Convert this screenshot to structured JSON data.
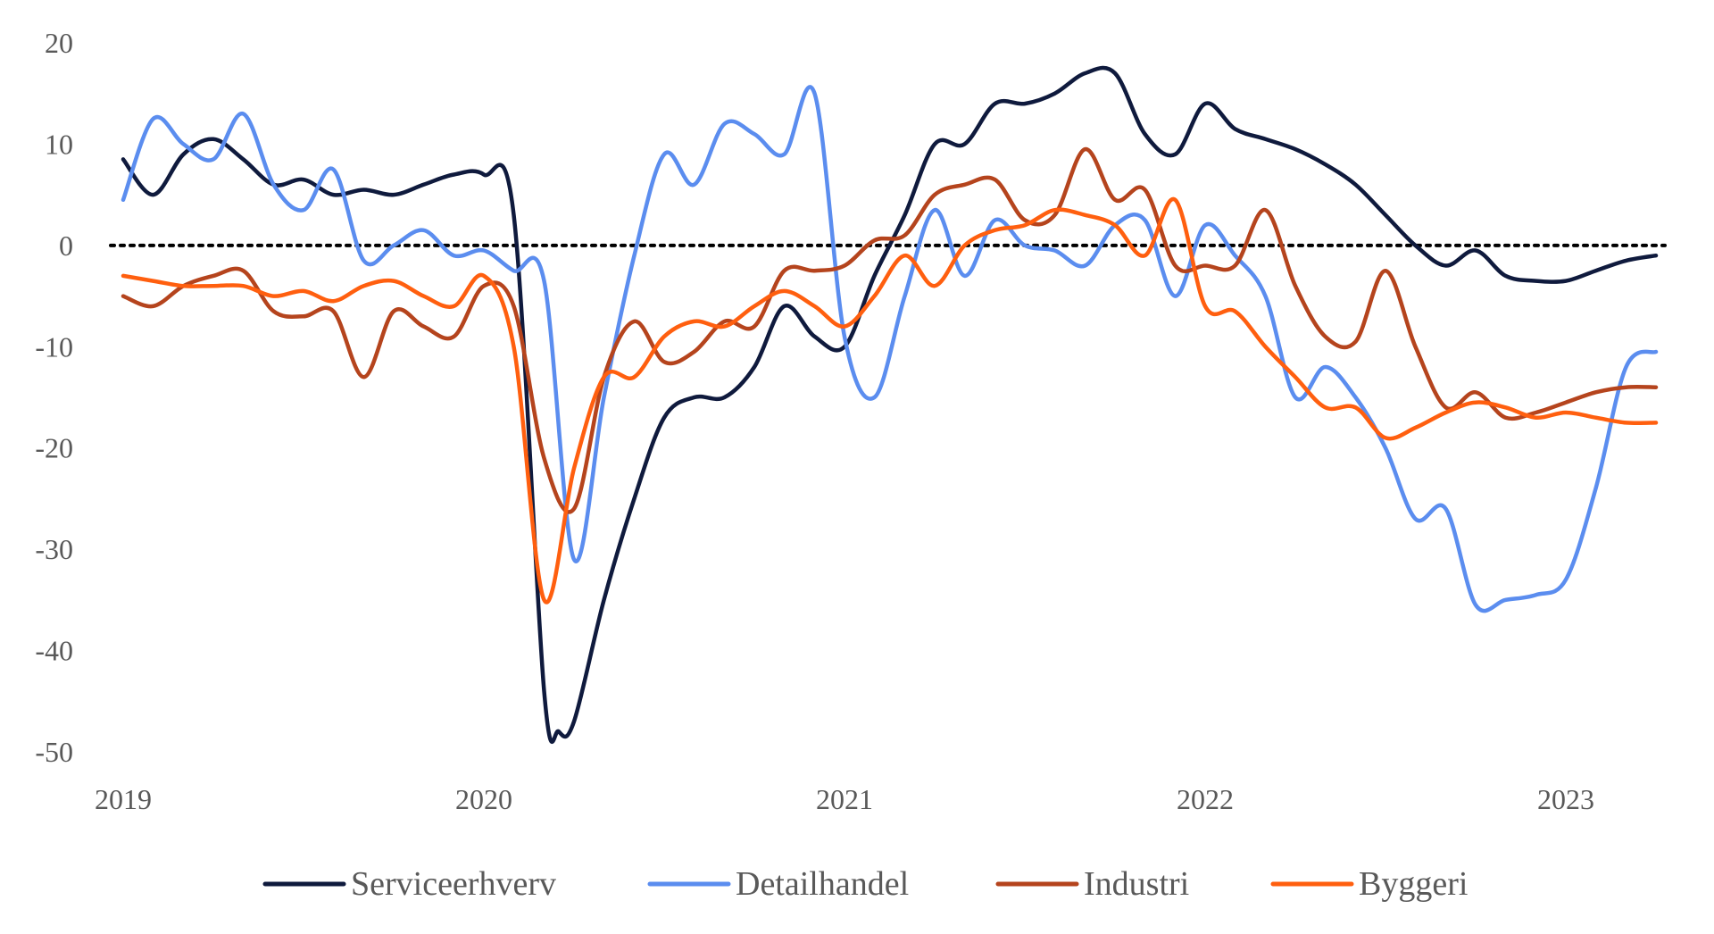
{
  "chart_data": {
    "type": "line",
    "title": "",
    "xlabel": "",
    "ylabel": "",
    "xlim": [
      2019.0,
      2023.25
    ],
    "ylim": [
      -50,
      20
    ],
    "yticks": [
      20,
      10,
      0,
      -10,
      -20,
      -30,
      -40,
      -50
    ],
    "ytick_labels": [
      "20",
      "10",
      "0",
      "-10",
      "-20",
      "-30",
      "-40",
      "-50"
    ],
    "xticks": [
      2019,
      2020,
      2021,
      2022,
      2023
    ],
    "xtick_labels": [
      "2019",
      "2020",
      "2021",
      "2022",
      "2023"
    ],
    "zero_line": true,
    "legend_position": "bottom",
    "series": [
      {
        "name": "Serviceerhverv",
        "color": "#0f1a3d",
        "x": [
          2019.0,
          2019.083,
          2019.167,
          2019.25,
          2019.333,
          2019.417,
          2019.5,
          2019.583,
          2019.667,
          2019.75,
          2019.833,
          2019.917,
          2020.0,
          2020.083,
          2020.167,
          2020.208,
          2020.25,
          2020.333,
          2020.417,
          2020.5,
          2020.583,
          2020.667,
          2020.75,
          2020.833,
          2020.917,
          2021.0,
          2021.083,
          2021.167,
          2021.25,
          2021.333,
          2021.417,
          2021.5,
          2021.583,
          2021.667,
          2021.75,
          2021.833,
          2021.917,
          2022.0,
          2022.083,
          2022.167,
          2022.25,
          2022.333,
          2022.417,
          2022.5,
          2022.583,
          2022.667,
          2022.75,
          2022.833,
          2022.917,
          2023.0,
          2023.083,
          2023.167,
          2023.25
        ],
        "values": [
          8.5,
          5.0,
          9.0,
          10.5,
          8.5,
          6.0,
          6.5,
          5.0,
          5.5,
          5.0,
          6.0,
          7.0,
          7.0,
          3.0,
          -44.0,
          -48.0,
          -47.0,
          -35.0,
          -25.0,
          -17.0,
          -15.0,
          -15.0,
          -12.0,
          -6.0,
          -9.0,
          -10.0,
          -3.0,
          3.0,
          10.0,
          10.0,
          14.0,
          14.0,
          15.0,
          17.0,
          17.0,
          11.0,
          9.0,
          14.0,
          11.5,
          10.5,
          9.5,
          8.0,
          6.0,
          3.0,
          0.0,
          -2.0,
          -0.5,
          -3.0,
          -3.5,
          -3.5,
          -2.5,
          -1.5,
          -1.0
        ]
      },
      {
        "name": "Detailhandel",
        "color": "#5b8def",
        "x": [
          2019.0,
          2019.083,
          2019.167,
          2019.25,
          2019.333,
          2019.417,
          2019.5,
          2019.583,
          2019.667,
          2019.75,
          2019.833,
          2019.917,
          2020.0,
          2020.083,
          2020.167,
          2020.25,
          2020.333,
          2020.417,
          2020.5,
          2020.583,
          2020.667,
          2020.75,
          2020.833,
          2020.917,
          2021.0,
          2021.083,
          2021.167,
          2021.25,
          2021.333,
          2021.417,
          2021.5,
          2021.583,
          2021.667,
          2021.75,
          2021.833,
          2021.917,
          2022.0,
          2022.083,
          2022.167,
          2022.25,
          2022.333,
          2022.417,
          2022.5,
          2022.583,
          2022.667,
          2022.75,
          2022.833,
          2022.917,
          2023.0,
          2023.083,
          2023.167,
          2023.25
        ],
        "values": [
          4.5,
          12.5,
          10.0,
          8.5,
          13.0,
          6.0,
          3.5,
          7.5,
          -1.5,
          0.0,
          1.5,
          -1.0,
          -0.5,
          -2.5,
          -3.5,
          -31.0,
          -15.0,
          -1.0,
          9.0,
          6.0,
          12.0,
          11.0,
          9.0,
          15.0,
          -9.0,
          -15.0,
          -5.0,
          3.5,
          -3.0,
          2.5,
          0.0,
          -0.5,
          -2.0,
          2.0,
          2.5,
          -5.0,
          2.0,
          -1.0,
          -5.0,
          -15.0,
          -12.0,
          -15.0,
          -20.0,
          -27.0,
          -26.0,
          -35.5,
          -35.0,
          -34.5,
          -33.0,
          -24.0,
          -12.0,
          -10.5
        ]
      },
      {
        "name": "Industri",
        "color": "#b5441d",
        "x": [
          2019.0,
          2019.083,
          2019.167,
          2019.25,
          2019.333,
          2019.417,
          2019.5,
          2019.583,
          2019.667,
          2019.75,
          2019.833,
          2019.917,
          2020.0,
          2020.083,
          2020.167,
          2020.25,
          2020.333,
          2020.417,
          2020.5,
          2020.583,
          2020.667,
          2020.75,
          2020.833,
          2020.917,
          2021.0,
          2021.083,
          2021.167,
          2021.25,
          2021.333,
          2021.417,
          2021.5,
          2021.583,
          2021.667,
          2021.75,
          2021.833,
          2021.917,
          2022.0,
          2022.083,
          2022.167,
          2022.25,
          2022.333,
          2022.417,
          2022.5,
          2022.583,
          2022.667,
          2022.75,
          2022.833,
          2022.917,
          2023.0,
          2023.083,
          2023.167,
          2023.25
        ],
        "values": [
          -5.0,
          -6.0,
          -4.0,
          -3.0,
          -2.5,
          -6.5,
          -7.0,
          -6.5,
          -13.0,
          -6.5,
          -8.0,
          -9.0,
          -4.0,
          -6.0,
          -21.0,
          -26.0,
          -13.0,
          -7.5,
          -11.5,
          -10.5,
          -7.5,
          -8.0,
          -2.5,
          -2.5,
          -2.0,
          0.5,
          1.0,
          5.0,
          6.0,
          6.5,
          2.5,
          3.0,
          9.5,
          4.5,
          5.5,
          -2.0,
          -2.0,
          -2.0,
          3.5,
          -4.0,
          -9.0,
          -9.5,
          -2.5,
          -10.0,
          -16.0,
          -14.5,
          -17.0,
          -16.5,
          -15.5,
          -14.5,
          -14.0,
          -14.0
        ]
      },
      {
        "name": "Byggeri",
        "color": "#ff5f0f",
        "x": [
          2019.0,
          2019.083,
          2019.167,
          2019.25,
          2019.333,
          2019.417,
          2019.5,
          2019.583,
          2019.667,
          2019.75,
          2019.833,
          2019.917,
          2020.0,
          2020.083,
          2020.167,
          2020.25,
          2020.333,
          2020.417,
          2020.5,
          2020.583,
          2020.667,
          2020.75,
          2020.833,
          2020.917,
          2021.0,
          2021.083,
          2021.167,
          2021.25,
          2021.333,
          2021.417,
          2021.5,
          2021.583,
          2021.667,
          2021.75,
          2021.833,
          2021.917,
          2022.0,
          2022.083,
          2022.167,
          2022.25,
          2022.333,
          2022.417,
          2022.5,
          2022.583,
          2022.667,
          2022.75,
          2022.833,
          2022.917,
          2023.0,
          2023.083,
          2023.167,
          2023.25
        ],
        "values": [
          -3.0,
          -3.5,
          -4.0,
          -4.0,
          -4.0,
          -5.0,
          -4.5,
          -5.5,
          -4.0,
          -3.5,
          -5.0,
          -6.0,
          -3.0,
          -10.0,
          -35.0,
          -22.0,
          -13.0,
          -13.0,
          -9.0,
          -7.5,
          -8.0,
          -6.0,
          -4.5,
          -6.0,
          -8.0,
          -5.0,
          -1.0,
          -4.0,
          0.0,
          1.5,
          2.0,
          3.5,
          3.0,
          2.0,
          -1.0,
          4.5,
          -6.0,
          -6.5,
          -10.0,
          -13.0,
          -16.0,
          -16.0,
          -19.0,
          -18.0,
          -16.5,
          -15.5,
          -16.0,
          -17.0,
          -16.5,
          -17.0,
          -17.5,
          -17.5
        ]
      }
    ]
  }
}
